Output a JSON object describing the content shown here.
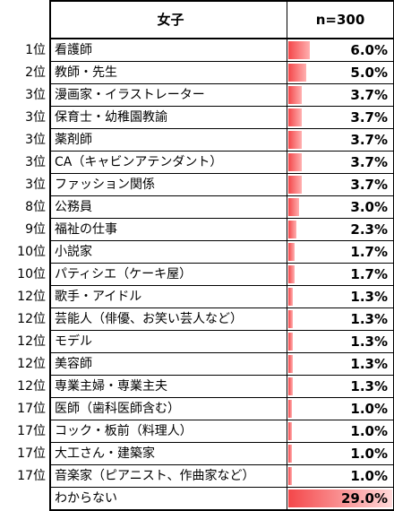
{
  "header": {
    "left": "女子",
    "right": "n=300"
  },
  "chart_data": {
    "type": "bar",
    "orientation": "horizontal",
    "unit": "%",
    "rows": [
      {
        "rank": "1位",
        "label": "看護師",
        "value": 6.0,
        "display": "6.0%"
      },
      {
        "rank": "2位",
        "label": "教師・先生",
        "value": 5.0,
        "display": "5.0%"
      },
      {
        "rank": "3位",
        "label": "漫画家・イラストレーター",
        "value": 3.7,
        "display": "3.7%"
      },
      {
        "rank": "3位",
        "label": "保育士・幼稚園教諭",
        "value": 3.7,
        "display": "3.7%"
      },
      {
        "rank": "3位",
        "label": "薬剤師",
        "value": 3.7,
        "display": "3.7%"
      },
      {
        "rank": "3位",
        "label": "CA（キャビンアテンダント）",
        "value": 3.7,
        "display": "3.7%"
      },
      {
        "rank": "3位",
        "label": "ファッション関係",
        "value": 3.7,
        "display": "3.7%"
      },
      {
        "rank": "8位",
        "label": "公務員",
        "value": 3.0,
        "display": "3.0%"
      },
      {
        "rank": "9位",
        "label": "福祉の仕事",
        "value": 2.3,
        "display": "2.3%"
      },
      {
        "rank": "10位",
        "label": "小説家",
        "value": 1.7,
        "display": "1.7%"
      },
      {
        "rank": "10位",
        "label": "パティシエ（ケーキ屋）",
        "value": 1.7,
        "display": "1.7%"
      },
      {
        "rank": "12位",
        "label": "歌手・アイドル",
        "value": 1.3,
        "display": "1.3%"
      },
      {
        "rank": "12位",
        "label": "芸能人（俳優、お笑い芸人など）",
        "value": 1.3,
        "display": "1.3%"
      },
      {
        "rank": "12位",
        "label": "モデル",
        "value": 1.3,
        "display": "1.3%"
      },
      {
        "rank": "12位",
        "label": "美容師",
        "value": 1.3,
        "display": "1.3%"
      },
      {
        "rank": "12位",
        "label": "専業主婦・専業主夫",
        "value": 1.3,
        "display": "1.3%"
      },
      {
        "rank": "17位",
        "label": "医師（歯科医師含む）",
        "value": 1.0,
        "display": "1.0%"
      },
      {
        "rank": "17位",
        "label": "コック・板前（料理人）",
        "value": 1.0,
        "display": "1.0%"
      },
      {
        "rank": "17位",
        "label": "大工さん・建築家",
        "value": 1.0,
        "display": "1.0%"
      },
      {
        "rank": "17位",
        "label": "音楽家（ピアニスト、作曲家など）",
        "value": 1.0,
        "display": "1.0%"
      },
      {
        "rank": "",
        "label": "わからない",
        "value": 29.0,
        "display": "29.0%"
      }
    ],
    "xlim": [
      0,
      29.0
    ],
    "bar_color": "#f4474a"
  }
}
